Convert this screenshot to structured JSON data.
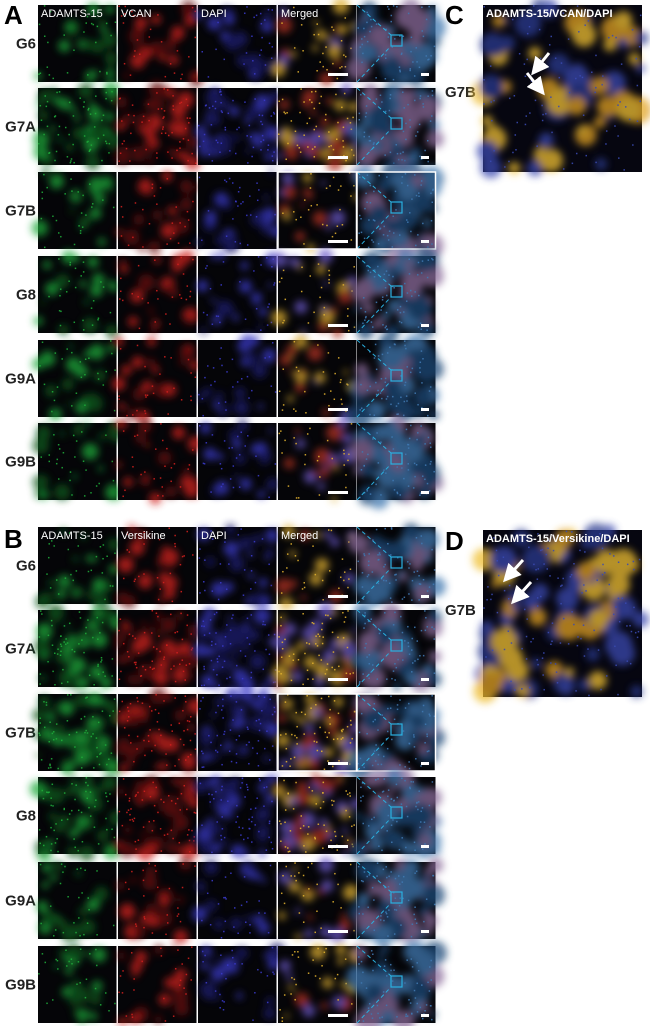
{
  "panels": [
    {
      "letter": "A",
      "headers": [
        "ADAMTS-15",
        "VCAN",
        "DAPI",
        "Merged"
      ],
      "rows": [
        "G6",
        "G7A",
        "G7B",
        "G8",
        "G9A",
        "G9B"
      ]
    },
    {
      "letter": "B",
      "headers": [
        "ADAMTS-15",
        "Versikine",
        "DAPI",
        "Merged"
      ],
      "rows": [
        "G6",
        "G7A",
        "G7B",
        "G8",
        "G9A",
        "G9B"
      ]
    }
  ],
  "insets": [
    {
      "letter": "C",
      "title": "ADAMTS-15/VCAN/DAPI",
      "row": "G7B"
    },
    {
      "letter": "D",
      "title": "ADAMTS-15/Versikine/DAPI",
      "row": "G7B"
    }
  ]
}
